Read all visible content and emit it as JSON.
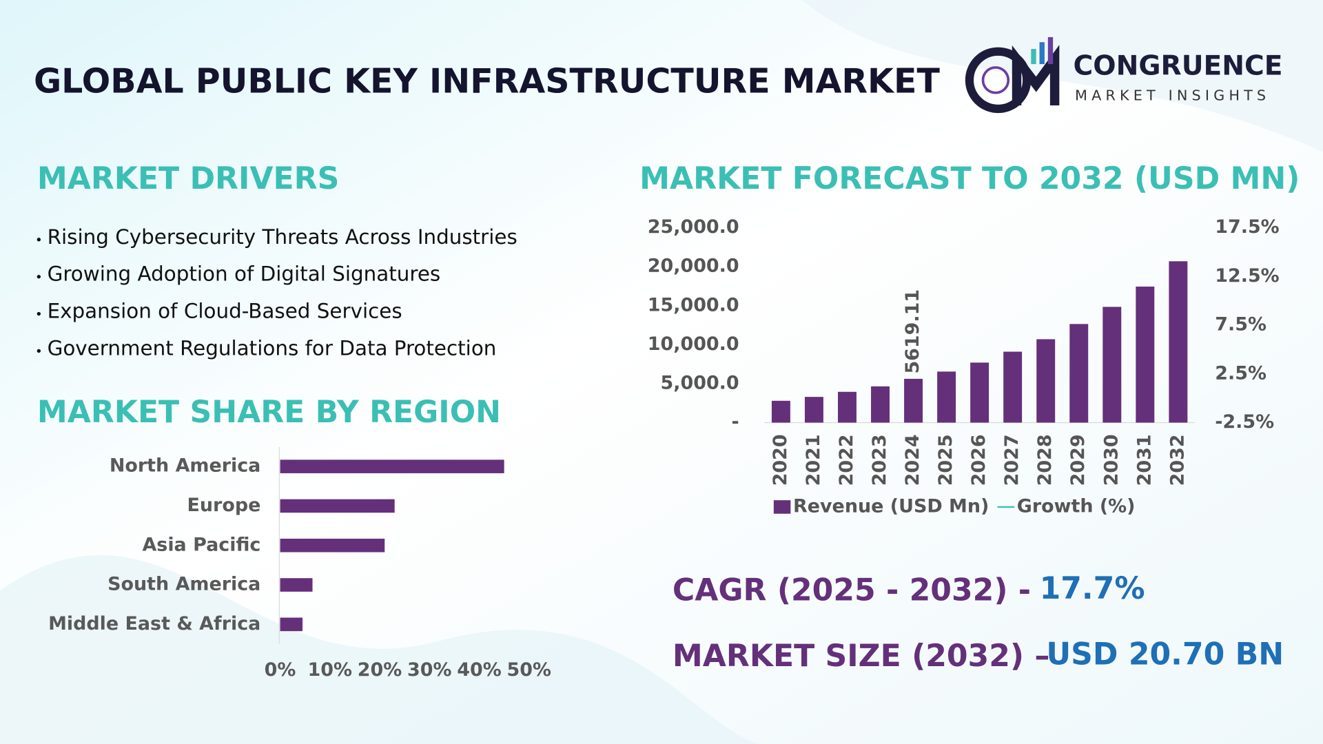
{
  "title": "GLOBAL PUBLIC KEY INFRASTRUCTURE MARKET",
  "logo": {
    "name": "CONGRUENCE",
    "tagline": "MARKET INSIGHTS"
  },
  "drivers": {
    "heading": "MARKET DRIVERS",
    "items": [
      "Rising Cybersecurity Threats Across Industries",
      "Growing Adoption of Digital Signatures",
      "Expansion of Cloud-Based Services",
      "Government Regulations for Data Protection"
    ]
  },
  "cagr": {
    "label": "CAGR (2025 - 2032) -",
    "value": "17.7%"
  },
  "market_size": {
    "label": "MARKET SIZE (2032) –",
    "value": "USD 20.70 BN"
  },
  "chart_data": [
    {
      "type": "barh",
      "title": "MARKET SHARE BY REGION",
      "categories": [
        "North America",
        "Europe",
        "Asia Pacific",
        "South America",
        "Middle East & Africa"
      ],
      "values": [
        45,
        23,
        21,
        6.5,
        4.5
      ],
      "color": "#64307a",
      "xlim": [
        0,
        50
      ],
      "xticks": [
        {
          "value": 0,
          "label": "0%"
        },
        {
          "value": 10,
          "label": "10%"
        },
        {
          "value": 20,
          "label": "20%"
        },
        {
          "value": 30,
          "label": "30%"
        },
        {
          "value": 40,
          "label": "40%"
        },
        {
          "value": 50,
          "label": "50%"
        }
      ]
    },
    {
      "type": "bar",
      "title": "MARKET FORECAST TO 2032 (USD MN)",
      "categories": [
        "2020",
        "2021",
        "2022",
        "2023",
        "2024",
        "2025",
        "2026",
        "2027",
        "2028",
        "2029",
        "2030",
        "2031",
        "2032"
      ],
      "series": [
        {
          "name": "Revenue (USD Mn)",
          "color": "#64307a",
          "values": [
            2800,
            3300,
            3950,
            4650,
            5619.11,
            6550,
            7700,
            9100,
            10700,
            12650,
            14850,
            17450,
            20700
          ],
          "value_labels": [
            null,
            null,
            null,
            null,
            "5619.11",
            null,
            null,
            null,
            null,
            null,
            null,
            null,
            null
          ]
        },
        {
          "name": "Growth (%)",
          "color": "#3bbfb4",
          "axis": "y2",
          "values": [
            null,
            null,
            null,
            null,
            null,
            null,
            null,
            null,
            null,
            null,
            null,
            null,
            null
          ]
        }
      ],
      "ylim": [
        0,
        25000
      ],
      "yticks": [
        {
          "value": 0,
          "label": "-"
        },
        {
          "value": 5000,
          "label": "5,000.0"
        },
        {
          "value": 10000,
          "label": "10,000.0"
        },
        {
          "value": 15000,
          "label": "15,000.0"
        },
        {
          "value": 20000,
          "label": "20,000.0"
        },
        {
          "value": 25000,
          "label": "25,000.0"
        }
      ],
      "y2lim": [
        -2.5,
        17.5
      ],
      "y2ticks": [
        {
          "value": -2.5,
          "label": "-2.5%"
        },
        {
          "value": 2.5,
          "label": "2.5%"
        },
        {
          "value": 7.5,
          "label": "7.5%"
        },
        {
          "value": 12.5,
          "label": "12.5%"
        },
        {
          "value": 17.5,
          "label": "17.5%"
        }
      ]
    }
  ]
}
